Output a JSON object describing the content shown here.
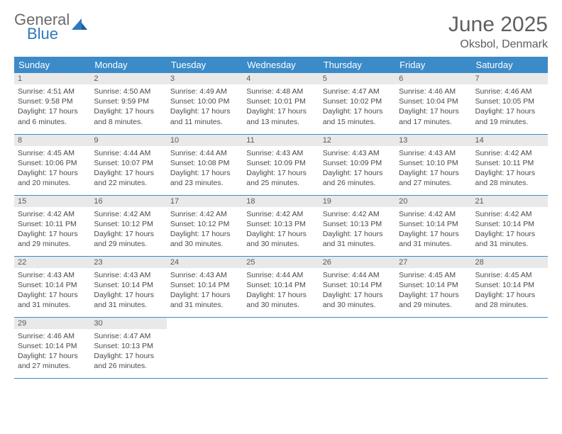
{
  "logo": {
    "line1": "General",
    "line2": "Blue"
  },
  "title": "June 2025",
  "location": "Oksbol, Denmark",
  "colors": {
    "header_bg": "#3b8bc9",
    "header_text": "#ffffff",
    "daynum_bg": "#e9e9e9",
    "text": "#4a4a4a",
    "title_text": "#5f5f5f",
    "row_border": "#3b8bc9"
  },
  "typography": {
    "title_fontsize": 30,
    "location_fontsize": 16,
    "header_fontsize": 13,
    "cell_fontsize": 10.5
  },
  "calendar": {
    "columns": [
      "Sunday",
      "Monday",
      "Tuesday",
      "Wednesday",
      "Thursday",
      "Friday",
      "Saturday"
    ],
    "weeks": [
      [
        {
          "day": "1",
          "sunrise": "4:51 AM",
          "sunset": "9:58 PM",
          "daylight": "17 hours and 6 minutes."
        },
        {
          "day": "2",
          "sunrise": "4:50 AM",
          "sunset": "9:59 PM",
          "daylight": "17 hours and 8 minutes."
        },
        {
          "day": "3",
          "sunrise": "4:49 AM",
          "sunset": "10:00 PM",
          "daylight": "17 hours and 11 minutes."
        },
        {
          "day": "4",
          "sunrise": "4:48 AM",
          "sunset": "10:01 PM",
          "daylight": "17 hours and 13 minutes."
        },
        {
          "day": "5",
          "sunrise": "4:47 AM",
          "sunset": "10:02 PM",
          "daylight": "17 hours and 15 minutes."
        },
        {
          "day": "6",
          "sunrise": "4:46 AM",
          "sunset": "10:04 PM",
          "daylight": "17 hours and 17 minutes."
        },
        {
          "day": "7",
          "sunrise": "4:46 AM",
          "sunset": "10:05 PM",
          "daylight": "17 hours and 19 minutes."
        }
      ],
      [
        {
          "day": "8",
          "sunrise": "4:45 AM",
          "sunset": "10:06 PM",
          "daylight": "17 hours and 20 minutes."
        },
        {
          "day": "9",
          "sunrise": "4:44 AM",
          "sunset": "10:07 PM",
          "daylight": "17 hours and 22 minutes."
        },
        {
          "day": "10",
          "sunrise": "4:44 AM",
          "sunset": "10:08 PM",
          "daylight": "17 hours and 23 minutes."
        },
        {
          "day": "11",
          "sunrise": "4:43 AM",
          "sunset": "10:09 PM",
          "daylight": "17 hours and 25 minutes."
        },
        {
          "day": "12",
          "sunrise": "4:43 AM",
          "sunset": "10:09 PM",
          "daylight": "17 hours and 26 minutes."
        },
        {
          "day": "13",
          "sunrise": "4:43 AM",
          "sunset": "10:10 PM",
          "daylight": "17 hours and 27 minutes."
        },
        {
          "day": "14",
          "sunrise": "4:42 AM",
          "sunset": "10:11 PM",
          "daylight": "17 hours and 28 minutes."
        }
      ],
      [
        {
          "day": "15",
          "sunrise": "4:42 AM",
          "sunset": "10:11 PM",
          "daylight": "17 hours and 29 minutes."
        },
        {
          "day": "16",
          "sunrise": "4:42 AM",
          "sunset": "10:12 PM",
          "daylight": "17 hours and 29 minutes."
        },
        {
          "day": "17",
          "sunrise": "4:42 AM",
          "sunset": "10:12 PM",
          "daylight": "17 hours and 30 minutes."
        },
        {
          "day": "18",
          "sunrise": "4:42 AM",
          "sunset": "10:13 PM",
          "daylight": "17 hours and 30 minutes."
        },
        {
          "day": "19",
          "sunrise": "4:42 AM",
          "sunset": "10:13 PM",
          "daylight": "17 hours and 31 minutes."
        },
        {
          "day": "20",
          "sunrise": "4:42 AM",
          "sunset": "10:14 PM",
          "daylight": "17 hours and 31 minutes."
        },
        {
          "day": "21",
          "sunrise": "4:42 AM",
          "sunset": "10:14 PM",
          "daylight": "17 hours and 31 minutes."
        }
      ],
      [
        {
          "day": "22",
          "sunrise": "4:43 AM",
          "sunset": "10:14 PM",
          "daylight": "17 hours and 31 minutes."
        },
        {
          "day": "23",
          "sunrise": "4:43 AM",
          "sunset": "10:14 PM",
          "daylight": "17 hours and 31 minutes."
        },
        {
          "day": "24",
          "sunrise": "4:43 AM",
          "sunset": "10:14 PM",
          "daylight": "17 hours and 31 minutes."
        },
        {
          "day": "25",
          "sunrise": "4:44 AM",
          "sunset": "10:14 PM",
          "daylight": "17 hours and 30 minutes."
        },
        {
          "day": "26",
          "sunrise": "4:44 AM",
          "sunset": "10:14 PM",
          "daylight": "17 hours and 30 minutes."
        },
        {
          "day": "27",
          "sunrise": "4:45 AM",
          "sunset": "10:14 PM",
          "daylight": "17 hours and 29 minutes."
        },
        {
          "day": "28",
          "sunrise": "4:45 AM",
          "sunset": "10:14 PM",
          "daylight": "17 hours and 28 minutes."
        }
      ],
      [
        {
          "day": "29",
          "sunrise": "4:46 AM",
          "sunset": "10:14 PM",
          "daylight": "17 hours and 27 minutes."
        },
        {
          "day": "30",
          "sunrise": "4:47 AM",
          "sunset": "10:13 PM",
          "daylight": "17 hours and 26 minutes."
        },
        null,
        null,
        null,
        null,
        null
      ]
    ]
  },
  "labels": {
    "sunrise": "Sunrise:",
    "sunset": "Sunset:",
    "daylight": "Daylight:"
  }
}
